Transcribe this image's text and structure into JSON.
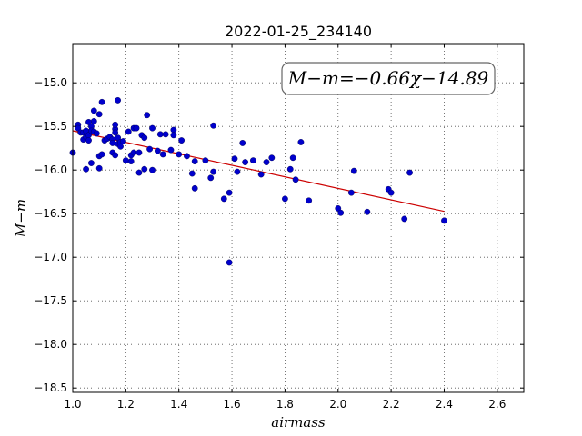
{
  "chart_data": {
    "type": "scatter",
    "title": "2022-01-25_234140",
    "xlabel": "airmass",
    "ylabel": "M−m",
    "xlim": [
      1.0,
      2.7
    ],
    "ylim": [
      -18.55,
      -14.55
    ],
    "y_inverted": true,
    "xticks": [
      1.0,
      1.2,
      1.4,
      1.6,
      1.8,
      2.0,
      2.2,
      2.4,
      2.6
    ],
    "xtick_labels": [
      "1.0",
      "1.2",
      "1.4",
      "1.6",
      "1.8",
      "2.0",
      "2.2",
      "2.4",
      "2.6"
    ],
    "yticks": [
      -15.0,
      -15.5,
      -16.0,
      -16.5,
      -17.0,
      -17.5,
      -18.0,
      -18.5
    ],
    "ytick_labels": [
      "−15.0",
      "−15.5",
      "−16.0",
      "−16.5",
      "−17.0",
      "−17.5",
      "−18.0",
      "−18.5"
    ],
    "grid": true,
    "annotation": "M−m=−0.66χ−14.89",
    "fit": {
      "slope": -0.66,
      "intercept": -14.89,
      "x_range": [
        1.0,
        2.4
      ],
      "color": "#cc0000"
    },
    "marker_color": "#0000cc",
    "points": [
      [
        1.0,
        -15.8
      ],
      [
        1.02,
        -15.48
      ],
      [
        1.02,
        -15.52
      ],
      [
        1.03,
        -15.57
      ],
      [
        1.04,
        -15.65
      ],
      [
        1.04,
        -15.57
      ],
      [
        1.05,
        -15.55
      ],
      [
        1.05,
        -15.99
      ],
      [
        1.05,
        -15.62
      ],
      [
        1.06,
        -15.6
      ],
      [
        1.06,
        -15.66
      ],
      [
        1.06,
        -15.45
      ],
      [
        1.07,
        -15.5
      ],
      [
        1.07,
        -15.55
      ],
      [
        1.07,
        -15.92
      ],
      [
        1.08,
        -15.44
      ],
      [
        1.08,
        -15.32
      ],
      [
        1.08,
        -15.56
      ],
      [
        1.09,
        -15.58
      ],
      [
        1.1,
        -15.36
      ],
      [
        1.1,
        -15.84
      ],
      [
        1.1,
        -15.98
      ],
      [
        1.11,
        -15.22
      ],
      [
        1.11,
        -15.82
      ],
      [
        1.12,
        -15.66
      ],
      [
        1.13,
        -15.64
      ],
      [
        1.14,
        -15.62
      ],
      [
        1.15,
        -15.8
      ],
      [
        1.15,
        -15.65
      ],
      [
        1.15,
        -15.69
      ],
      [
        1.16,
        -15.53
      ],
      [
        1.16,
        -15.57
      ],
      [
        1.16,
        -15.83
      ],
      [
        1.16,
        -15.48
      ],
      [
        1.17,
        -15.2
      ],
      [
        1.17,
        -15.63
      ],
      [
        1.17,
        -15.7
      ],
      [
        1.18,
        -15.68
      ],
      [
        1.18,
        -15.73
      ],
      [
        1.19,
        -15.67
      ],
      [
        1.2,
        -15.89
      ],
      [
        1.21,
        -15.56
      ],
      [
        1.22,
        -15.83
      ],
      [
        1.22,
        -15.9
      ],
      [
        1.23,
        -15.8
      ],
      [
        1.23,
        -15.52
      ],
      [
        1.24,
        -15.52
      ],
      [
        1.25,
        -16.03
      ],
      [
        1.25,
        -15.8
      ],
      [
        1.26,
        -15.6
      ],
      [
        1.27,
        -15.63
      ],
      [
        1.27,
        -15.99
      ],
      [
        1.28,
        -15.37
      ],
      [
        1.29,
        -15.76
      ],
      [
        1.3,
        -15.52
      ],
      [
        1.3,
        -16.0
      ],
      [
        1.32,
        -15.78
      ],
      [
        1.33,
        -15.59
      ],
      [
        1.34,
        -15.82
      ],
      [
        1.35,
        -15.59
      ],
      [
        1.37,
        -15.77
      ],
      [
        1.38,
        -15.54
      ],
      [
        1.38,
        -15.6
      ],
      [
        1.4,
        -15.82
      ],
      [
        1.41,
        -15.66
      ],
      [
        1.43,
        -15.84
      ],
      [
        1.45,
        -16.04
      ],
      [
        1.46,
        -16.21
      ],
      [
        1.46,
        -15.9
      ],
      [
        1.5,
        -15.89
      ],
      [
        1.52,
        -16.09
      ],
      [
        1.53,
        -15.49
      ],
      [
        1.53,
        -16.02
      ],
      [
        1.57,
        -16.33
      ],
      [
        1.59,
        -16.26
      ],
      [
        1.59,
        -17.06
      ],
      [
        1.61,
        -15.87
      ],
      [
        1.62,
        -16.02
      ],
      [
        1.64,
        -15.69
      ],
      [
        1.65,
        -15.91
      ],
      [
        1.68,
        -15.89
      ],
      [
        1.71,
        -16.05
      ],
      [
        1.73,
        -15.91
      ],
      [
        1.75,
        -15.86
      ],
      [
        1.8,
        -16.33
      ],
      [
        1.82,
        -15.99
      ],
      [
        1.83,
        -15.86
      ],
      [
        1.84,
        -16.11
      ],
      [
        1.86,
        -15.68
      ],
      [
        1.89,
        -16.35
      ],
      [
        2.0,
        -16.44
      ],
      [
        2.01,
        -16.49
      ],
      [
        2.05,
        -16.26
      ],
      [
        2.06,
        -16.01
      ],
      [
        2.11,
        -16.48
      ],
      [
        2.19,
        -16.22
      ],
      [
        2.2,
        -16.26
      ],
      [
        2.25,
        -16.56
      ],
      [
        2.27,
        -16.03
      ],
      [
        2.4,
        -16.58
      ]
    ]
  }
}
